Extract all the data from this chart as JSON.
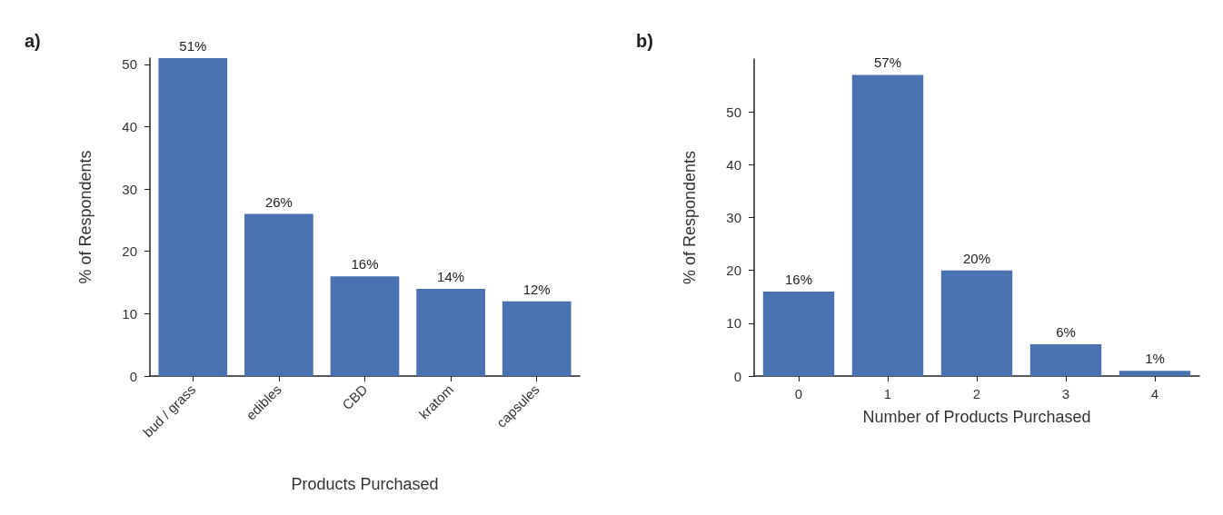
{
  "chart_data": [
    {
      "type": "bar",
      "title": "a)",
      "xlabel": "Products Purchased",
      "ylabel": "% of Respondents",
      "categories": [
        "bud / grass",
        "edibles",
        "CBD",
        "kratom",
        "capsules"
      ],
      "series": [
        {
          "color": "#4a72b0",
          "values": [
            51,
            26,
            16,
            14,
            12
          ],
          "value_labels": [
            "51%",
            "26%",
            "16%",
            "14%",
            "12%"
          ]
        }
      ],
      "ylim": [
        0,
        51
      ],
      "yticks": [
        0,
        10,
        20,
        30,
        40,
        50
      ]
    },
    {
      "type": "bar",
      "title": "b)",
      "xlabel": "Number of Products Purchased",
      "ylabel": "% of Respondents",
      "categories": [
        "0",
        "1",
        "2",
        "3",
        "4"
      ],
      "series": [
        {
          "color": "#4a72b0",
          "values": [
            16,
            57,
            20,
            6,
            1
          ],
          "value_labels": [
            "16%",
            "57%",
            "20%",
            "6%",
            "1%"
          ]
        }
      ],
      "ylim": [
        0,
        60
      ],
      "yticks": [
        0,
        10,
        20,
        30,
        40,
        50
      ]
    }
  ]
}
